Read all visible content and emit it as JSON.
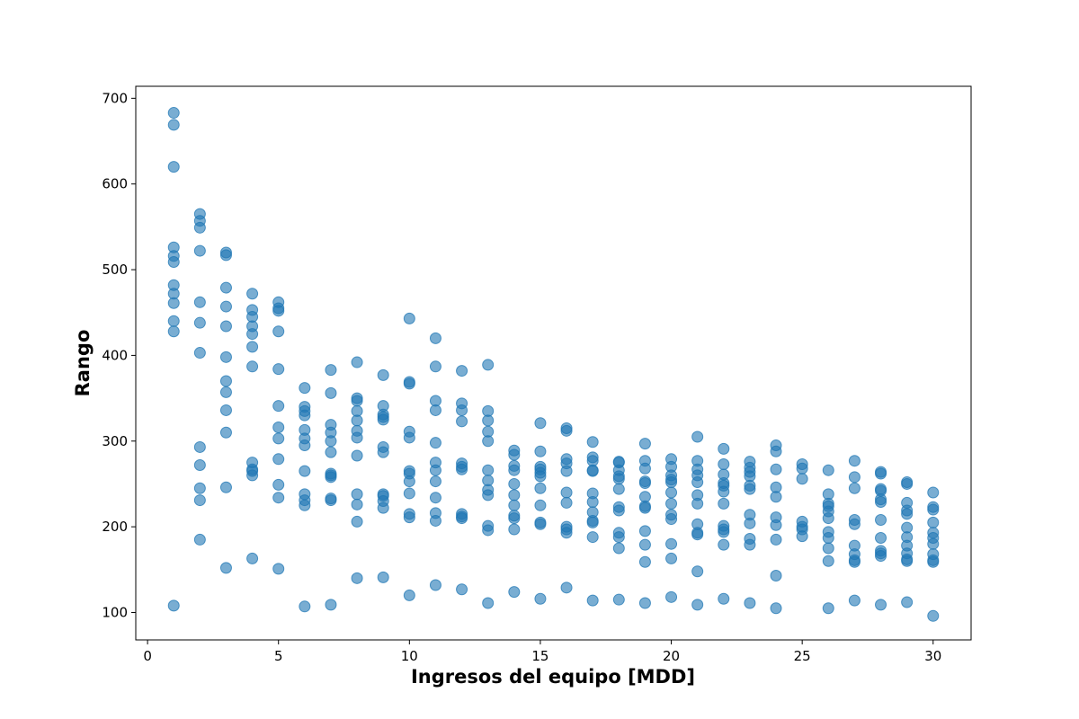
{
  "chart_data": {
    "type": "scatter",
    "title": "",
    "xlabel": "Ingresos del equipo [MDD]",
    "ylabel": "Rango",
    "xlim": [
      -0.45,
      31.45
    ],
    "ylim": [
      68,
      714
    ],
    "xticks": [
      0,
      5,
      10,
      15,
      20,
      25,
      30
    ],
    "yticks": [
      100,
      200,
      300,
      400,
      500,
      600,
      700
    ],
    "grid": false,
    "legend": "none",
    "marker_color": "#1f77b4",
    "points": [
      [
        1,
        683
      ],
      [
        1,
        669
      ],
      [
        1,
        620
      ],
      [
        1,
        526
      ],
      [
        1,
        516
      ],
      [
        1,
        509
      ],
      [
        1,
        482
      ],
      [
        1,
        472
      ],
      [
        1,
        461
      ],
      [
        1,
        440
      ],
      [
        1,
        428
      ],
      [
        1,
        108
      ],
      [
        2,
        565
      ],
      [
        2,
        557
      ],
      [
        2,
        549
      ],
      [
        2,
        522
      ],
      [
        2,
        462
      ],
      [
        2,
        438
      ],
      [
        2,
        403
      ],
      [
        2,
        293
      ],
      [
        2,
        272
      ],
      [
        2,
        245
      ],
      [
        2,
        231
      ],
      [
        2,
        185
      ],
      [
        3,
        520
      ],
      [
        3,
        517
      ],
      [
        3,
        479
      ],
      [
        3,
        457
      ],
      [
        3,
        434
      ],
      [
        3,
        398
      ],
      [
        3,
        370
      ],
      [
        3,
        357
      ],
      [
        3,
        336
      ],
      [
        3,
        310
      ],
      [
        3,
        246
      ],
      [
        3,
        152
      ],
      [
        4,
        472
      ],
      [
        4,
        453
      ],
      [
        4,
        445
      ],
      [
        4,
        434
      ],
      [
        4,
        425
      ],
      [
        4,
        410
      ],
      [
        4,
        387
      ],
      [
        4,
        275
      ],
      [
        4,
        267
      ],
      [
        4,
        265
      ],
      [
        4,
        260
      ],
      [
        4,
        163
      ],
      [
        5,
        462
      ],
      [
        5,
        455
      ],
      [
        5,
        452
      ],
      [
        5,
        428
      ],
      [
        5,
        384
      ],
      [
        5,
        341
      ],
      [
        5,
        316
      ],
      [
        5,
        303
      ],
      [
        5,
        279
      ],
      [
        5,
        249
      ],
      [
        5,
        234
      ],
      [
        5,
        151
      ],
      [
        6,
        362
      ],
      [
        6,
        340
      ],
      [
        6,
        335
      ],
      [
        6,
        330
      ],
      [
        6,
        313
      ],
      [
        6,
        303
      ],
      [
        6,
        295
      ],
      [
        6,
        265
      ],
      [
        6,
        238
      ],
      [
        6,
        231
      ],
      [
        6,
        225
      ],
      [
        6,
        107
      ],
      [
        7,
        383
      ],
      [
        7,
        356
      ],
      [
        7,
        319
      ],
      [
        7,
        310
      ],
      [
        7,
        300
      ],
      [
        7,
        287
      ],
      [
        7,
        262
      ],
      [
        7,
        260
      ],
      [
        7,
        258
      ],
      [
        7,
        233
      ],
      [
        7,
        231
      ],
      [
        7,
        109
      ],
      [
        8,
        392
      ],
      [
        8,
        350
      ],
      [
        8,
        347
      ],
      [
        8,
        335
      ],
      [
        8,
        324
      ],
      [
        8,
        312
      ],
      [
        8,
        304
      ],
      [
        8,
        283
      ],
      [
        8,
        238
      ],
      [
        8,
        226
      ],
      [
        8,
        206
      ],
      [
        8,
        140
      ],
      [
        9,
        377
      ],
      [
        9,
        341
      ],
      [
        9,
        331
      ],
      [
        9,
        328
      ],
      [
        9,
        325
      ],
      [
        9,
        293
      ],
      [
        9,
        287
      ],
      [
        9,
        238
      ],
      [
        9,
        236
      ],
      [
        9,
        230
      ],
      [
        9,
        222
      ],
      [
        9,
        141
      ],
      [
        10,
        443
      ],
      [
        10,
        369
      ],
      [
        10,
        367
      ],
      [
        10,
        311
      ],
      [
        10,
        304
      ],
      [
        10,
        265
      ],
      [
        10,
        262
      ],
      [
        10,
        253
      ],
      [
        10,
        239
      ],
      [
        10,
        215
      ],
      [
        10,
        211
      ],
      [
        10,
        120
      ],
      [
        11,
        420
      ],
      [
        11,
        387
      ],
      [
        11,
        347
      ],
      [
        11,
        336
      ],
      [
        11,
        298
      ],
      [
        11,
        275
      ],
      [
        11,
        266
      ],
      [
        11,
        253
      ],
      [
        11,
        234
      ],
      [
        11,
        216
      ],
      [
        11,
        207
      ],
      [
        11,
        132
      ],
      [
        12,
        382
      ],
      [
        12,
        344
      ],
      [
        12,
        336
      ],
      [
        12,
        323
      ],
      [
        12,
        274
      ],
      [
        12,
        270
      ],
      [
        12,
        267
      ],
      [
        12,
        215
      ],
      [
        12,
        212
      ],
      [
        12,
        210
      ],
      [
        12,
        127
      ],
      [
        13,
        389
      ],
      [
        13,
        335
      ],
      [
        13,
        324
      ],
      [
        13,
        311
      ],
      [
        13,
        300
      ],
      [
        13,
        266
      ],
      [
        13,
        254
      ],
      [
        13,
        243
      ],
      [
        13,
        237
      ],
      [
        13,
        201
      ],
      [
        13,
        196
      ],
      [
        13,
        111
      ],
      [
        14,
        289
      ],
      [
        14,
        284
      ],
      [
        14,
        271
      ],
      [
        14,
        266
      ],
      [
        14,
        250
      ],
      [
        14,
        237
      ],
      [
        14,
        225
      ],
      [
        14,
        213
      ],
      [
        14,
        210
      ],
      [
        14,
        197
      ],
      [
        14,
        124
      ],
      [
        15,
        321
      ],
      [
        15,
        288
      ],
      [
        15,
        270
      ],
      [
        15,
        267
      ],
      [
        15,
        263
      ],
      [
        15,
        259
      ],
      [
        15,
        245
      ],
      [
        15,
        225
      ],
      [
        15,
        205
      ],
      [
        15,
        203
      ],
      [
        15,
        116
      ],
      [
        16,
        315
      ],
      [
        16,
        312
      ],
      [
        16,
        279
      ],
      [
        16,
        274
      ],
      [
        16,
        265
      ],
      [
        16,
        240
      ],
      [
        16,
        228
      ],
      [
        16,
        200
      ],
      [
        16,
        197
      ],
      [
        16,
        193
      ],
      [
        16,
        129
      ],
      [
        17,
        299
      ],
      [
        17,
        281
      ],
      [
        17,
        277
      ],
      [
        17,
        266
      ],
      [
        17,
        265
      ],
      [
        17,
        239
      ],
      [
        17,
        229
      ],
      [
        17,
        217
      ],
      [
        17,
        207
      ],
      [
        17,
        205
      ],
      [
        17,
        188
      ],
      [
        17,
        114
      ],
      [
        18,
        276
      ],
      [
        18,
        275
      ],
      [
        18,
        266
      ],
      [
        18,
        259
      ],
      [
        18,
        256
      ],
      [
        18,
        244
      ],
      [
        18,
        223
      ],
      [
        18,
        219
      ],
      [
        18,
        193
      ],
      [
        18,
        188
      ],
      [
        18,
        175
      ],
      [
        18,
        115
      ],
      [
        19,
        297
      ],
      [
        19,
        277
      ],
      [
        19,
        268
      ],
      [
        19,
        253
      ],
      [
        19,
        251
      ],
      [
        19,
        235
      ],
      [
        19,
        224
      ],
      [
        19,
        222
      ],
      [
        19,
        195
      ],
      [
        19,
        179
      ],
      [
        19,
        159
      ],
      [
        19,
        111
      ],
      [
        20,
        279
      ],
      [
        20,
        270
      ],
      [
        20,
        260
      ],
      [
        20,
        255
      ],
      [
        20,
        252
      ],
      [
        20,
        240
      ],
      [
        20,
        227
      ],
      [
        20,
        214
      ],
      [
        20,
        209
      ],
      [
        20,
        180
      ],
      [
        20,
        163
      ],
      [
        20,
        118
      ],
      [
        21,
        305
      ],
      [
        21,
        277
      ],
      [
        21,
        267
      ],
      [
        21,
        260
      ],
      [
        21,
        252
      ],
      [
        21,
        237
      ],
      [
        21,
        227
      ],
      [
        21,
        203
      ],
      [
        21,
        193
      ],
      [
        21,
        191
      ],
      [
        21,
        148
      ],
      [
        21,
        109
      ],
      [
        22,
        291
      ],
      [
        22,
        273
      ],
      [
        22,
        261
      ],
      [
        22,
        251
      ],
      [
        22,
        248
      ],
      [
        22,
        241
      ],
      [
        22,
        227
      ],
      [
        22,
        201
      ],
      [
        22,
        197
      ],
      [
        22,
        194
      ],
      [
        22,
        179
      ],
      [
        22,
        116
      ],
      [
        23,
        276
      ],
      [
        23,
        269
      ],
      [
        23,
        264
      ],
      [
        23,
        259
      ],
      [
        23,
        248
      ],
      [
        23,
        244
      ],
      [
        23,
        214
      ],
      [
        23,
        204
      ],
      [
        23,
        186
      ],
      [
        23,
        179
      ],
      [
        23,
        111
      ],
      [
        24,
        295
      ],
      [
        24,
        288
      ],
      [
        24,
        267
      ],
      [
        24,
        246
      ],
      [
        24,
        235
      ],
      [
        24,
        211
      ],
      [
        24,
        202
      ],
      [
        24,
        185
      ],
      [
        24,
        143
      ],
      [
        24,
        105
      ],
      [
        25,
        273
      ],
      [
        25,
        268
      ],
      [
        25,
        256
      ],
      [
        25,
        206
      ],
      [
        25,
        200
      ],
      [
        25,
        197
      ],
      [
        25,
        189
      ],
      [
        26,
        266
      ],
      [
        26,
        238
      ],
      [
        26,
        227
      ],
      [
        26,
        224
      ],
      [
        26,
        218
      ],
      [
        26,
        210
      ],
      [
        26,
        194
      ],
      [
        26,
        187
      ],
      [
        26,
        175
      ],
      [
        26,
        160
      ],
      [
        26,
        105
      ],
      [
        27,
        277
      ],
      [
        27,
        258
      ],
      [
        27,
        245
      ],
      [
        27,
        208
      ],
      [
        27,
        203
      ],
      [
        27,
        178
      ],
      [
        27,
        168
      ],
      [
        27,
        161
      ],
      [
        27,
        159
      ],
      [
        27,
        114
      ],
      [
        28,
        264
      ],
      [
        28,
        262
      ],
      [
        28,
        244
      ],
      [
        28,
        242
      ],
      [
        28,
        232
      ],
      [
        28,
        229
      ],
      [
        28,
        208
      ],
      [
        28,
        187
      ],
      [
        28,
        172
      ],
      [
        28,
        169
      ],
      [
        28,
        166
      ],
      [
        28,
        109
      ],
      [
        29,
        252
      ],
      [
        29,
        250
      ],
      [
        29,
        228
      ],
      [
        29,
        219
      ],
      [
        29,
        215
      ],
      [
        29,
        199
      ],
      [
        29,
        188
      ],
      [
        29,
        178
      ],
      [
        29,
        169
      ],
      [
        29,
        162
      ],
      [
        29,
        160
      ],
      [
        29,
        112
      ],
      [
        30,
        240
      ],
      [
        30,
        223
      ],
      [
        30,
        220
      ],
      [
        30,
        205
      ],
      [
        30,
        193
      ],
      [
        30,
        187
      ],
      [
        30,
        180
      ],
      [
        30,
        168
      ],
      [
        30,
        161
      ],
      [
        30,
        159
      ],
      [
        30,
        96
      ]
    ]
  }
}
